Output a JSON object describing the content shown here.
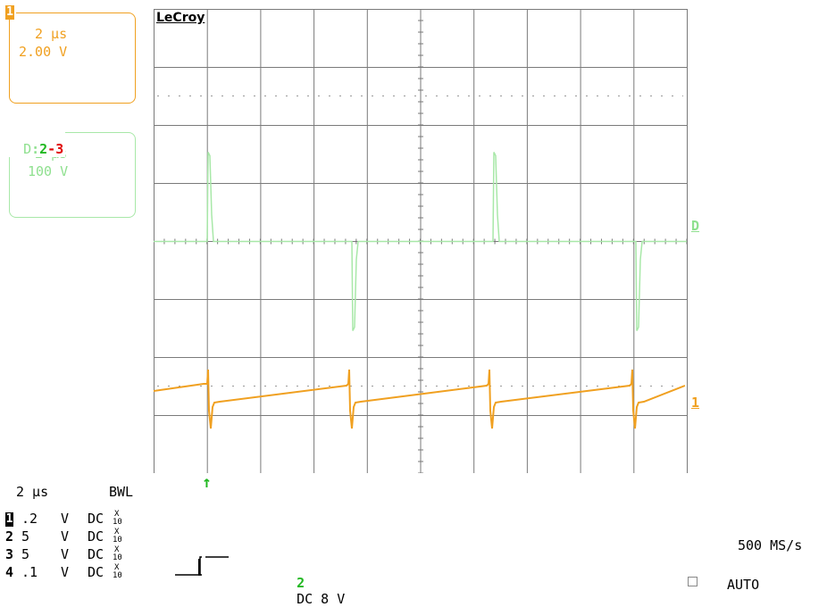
{
  "ch1_box": {
    "badge": "1",
    "timebase": "2 μs",
    "volts": "2.00 V",
    "color": "#f0a020"
  },
  "math_box": {
    "badge": "D",
    "sep": ":",
    "src_a": "2",
    "dash": "-",
    "src_b": "3",
    "timebase": "2 μs",
    "volts": "100 V",
    "color": "#a8e8a8"
  },
  "brand": "LeCroy",
  "trace_markers": {
    "math": "D",
    "ch1": "1"
  },
  "trigger_arrow": "↑",
  "footer": {
    "timebase": "2 μs",
    "bwl": "BWL",
    "channels": [
      {
        "num": "1",
        "value": ".2",
        "unit": "V",
        "coupling": "DC",
        "probe_top": "X",
        "probe_bottom": "10"
      },
      {
        "num": "2",
        "value": "5",
        "unit": "V",
        "coupling": "DC",
        "probe_top": "X",
        "probe_bottom": "10"
      },
      {
        "num": "3",
        "value": "5",
        "unit": "V",
        "coupling": "DC",
        "probe_top": "X",
        "probe_bottom": "10"
      },
      {
        "num": "4",
        "value": ".1",
        "unit": "V",
        "coupling": "DC",
        "probe_top": "X",
        "probe_bottom": "10"
      }
    ],
    "trigger_channel": "2",
    "trigger_text": "DC 8 V",
    "sample_rate": "500 MS/s",
    "mode": "AUTO"
  },
  "colors": {
    "ch1": "#f0a020",
    "math": "#a8e8a8",
    "trigger": "#22b822",
    "red": "#e00000",
    "grid": "#808080"
  }
}
